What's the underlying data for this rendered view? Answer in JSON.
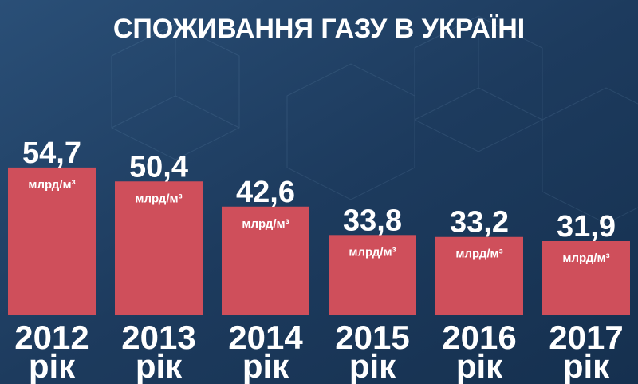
{
  "chart_data": {
    "type": "bar",
    "title": "СПОЖИВАННЯ ГАЗУ В УКРАЇНІ",
    "categories": [
      "2012 рік",
      "2013 рік",
      "2014 рік",
      "2015 рік",
      "2016 рік",
      "2017 рік"
    ],
    "values": [
      54.7,
      50.4,
      42.6,
      33.8,
      33.2,
      31.9
    ],
    "value_labels": [
      "54,7",
      "50,4",
      "42,6",
      "33,8",
      "33,2",
      "31,9"
    ],
    "unit_label": "млрд/м³",
    "color": "#cf4f5b"
  }
}
